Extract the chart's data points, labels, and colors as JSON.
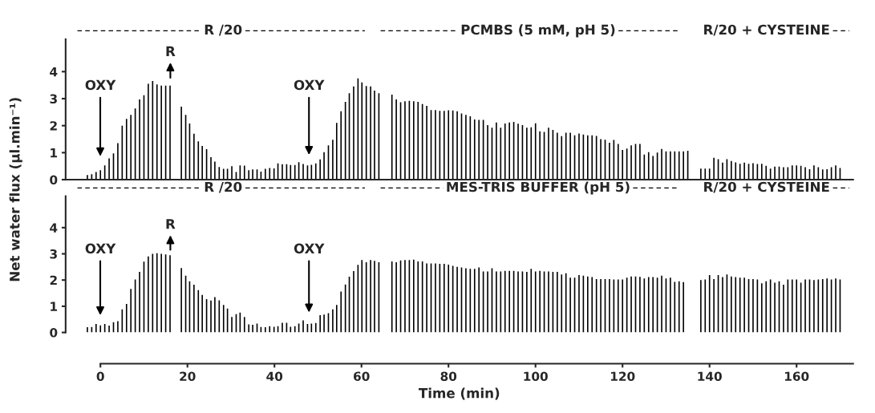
{
  "chart_data": [
    {
      "type": "bar",
      "ylabel": "Net water flux (µl.min⁻¹)",
      "xlim": [
        -8,
        173
      ],
      "ylim": [
        0,
        5.2
      ],
      "yticks": [
        0,
        1,
        2,
        3,
        4
      ],
      "tick_labels": "y",
      "annotations": [
        "OXY",
        "R",
        "OXY",
        "R /20",
        "PCMBS (5 mM, pH 5)",
        "R/20 + CYSTEINE"
      ],
      "series": [
        {
          "color": "#000000",
          "x": [
            -3,
            -2,
            -1,
            0,
            1,
            2,
            3,
            4,
            5,
            6,
            7,
            8,
            9,
            10,
            11,
            12,
            13,
            14,
            15,
            16
          ],
          "values": [
            0.17,
            0.2,
            0.28,
            0.35,
            0.53,
            0.79,
            0.97,
            1.35,
            2.0,
            2.25,
            2.4,
            2.64,
            2.97,
            3.13,
            3.55,
            3.65,
            3.53,
            3.48,
            3.48,
            3.48
          ]
        },
        {
          "color": "#000000",
          "x": [
            18.6,
            19.6,
            20.5,
            21.5,
            22.5,
            23.4,
            24.4,
            25.4,
            26.3,
            27.3,
            28.3,
            29.2,
            30.2,
            31.2,
            32.1,
            33.1,
            34.1,
            35.0,
            36.0,
            36.9,
            37.9,
            38.9,
            39.9,
            40.8,
            41.8,
            42.8,
            43.7,
            44.7,
            45.6,
            46.6,
            47.6,
            48.5,
            49.5,
            50.5,
            51.4,
            52.4,
            53.4,
            54.3,
            55.3,
            56.3,
            57.2,
            58.2,
            59.2,
            60.1,
            61.1,
            62.1,
            63.0,
            64.0
          ],
          "values": [
            2.7,
            2.4,
            2.08,
            1.7,
            1.42,
            1.25,
            1.13,
            0.83,
            0.67,
            0.47,
            0.4,
            0.4,
            0.5,
            0.28,
            0.53,
            0.52,
            0.35,
            0.38,
            0.38,
            0.3,
            0.4,
            0.43,
            0.42,
            0.6,
            0.57,
            0.57,
            0.54,
            0.54,
            0.65,
            0.58,
            0.53,
            0.55,
            0.6,
            0.75,
            1.02,
            1.27,
            1.48,
            2.1,
            2.53,
            2.88,
            3.2,
            3.45,
            3.75,
            3.6,
            3.47,
            3.45,
            3.3,
            3.2
          ]
        },
        {
          "color": "#000000",
          "x": [
            67,
            68,
            69,
            70,
            71,
            72,
            73,
            74,
            75,
            76,
            77,
            78,
            79,
            80,
            81,
            82,
            83,
            84,
            85,
            86,
            87,
            88,
            89,
            90,
            91,
            92,
            93,
            94,
            95,
            96,
            97,
            98,
            99,
            100,
            101,
            102,
            103,
            104,
            105,
            106,
            107,
            108,
            109,
            110,
            111,
            112,
            113,
            114,
            115,
            116,
            117,
            118,
            119,
            120,
            121,
            122,
            123,
            124,
            125,
            126,
            127,
            128,
            129,
            130,
            131,
            132,
            133,
            134,
            135
          ],
          "values": [
            3.15,
            2.97,
            2.87,
            2.9,
            2.92,
            2.9,
            2.88,
            2.8,
            2.73,
            2.58,
            2.58,
            2.55,
            2.55,
            2.57,
            2.56,
            2.53,
            2.45,
            2.4,
            2.35,
            2.23,
            2.21,
            2.21,
            2.02,
            1.92,
            2.12,
            1.92,
            2.08,
            2.12,
            2.14,
            2.07,
            2.02,
            1.92,
            1.94,
            2.09,
            1.79,
            1.77,
            1.92,
            1.84,
            1.74,
            1.61,
            1.74,
            1.74,
            1.64,
            1.71,
            1.67,
            1.64,
            1.64,
            1.62,
            1.5,
            1.48,
            1.37,
            1.47,
            1.32,
            1.1,
            1.15,
            1.27,
            1.32,
            1.32,
            0.93,
            1.02,
            0.88,
            1.0,
            1.14,
            1.05,
            1.05,
            1.05,
            1.05,
            1.05,
            1.07
          ]
        },
        {
          "color": "#000000",
          "x": [
            138,
            139,
            140,
            141,
            142,
            143,
            144,
            145,
            146,
            147,
            148,
            149,
            150,
            151,
            152,
            153,
            154,
            155,
            156,
            157,
            158,
            159,
            160,
            161,
            162,
            163,
            164,
            165,
            166,
            167,
            168,
            169,
            170
          ],
          "values": [
            0.41,
            0.41,
            0.41,
            0.81,
            0.76,
            0.63,
            0.76,
            0.69,
            0.64,
            0.59,
            0.63,
            0.59,
            0.61,
            0.58,
            0.59,
            0.51,
            0.41,
            0.48,
            0.48,
            0.46,
            0.46,
            0.53,
            0.53,
            0.51,
            0.46,
            0.39,
            0.53,
            0.46,
            0.38,
            0.39,
            0.46,
            0.53,
            0.43
          ]
        }
      ]
    },
    {
      "type": "bar",
      "xlabel": "Time (min)",
      "xlim": [
        -8,
        173
      ],
      "xticks": [
        0,
        20,
        40,
        60,
        80,
        100,
        120,
        140,
        160
      ],
      "ylim": [
        0,
        5.2
      ],
      "yticks": [
        0,
        1,
        2,
        3,
        4
      ],
      "annotations": [
        "OXY",
        "R",
        "OXY",
        "R /20",
        "MES-TRIS BUFFER (pH 5)",
        "R/20 + CYSTEINE"
      ],
      "series": [
        {
          "color": "#000000",
          "x": [
            -3,
            -2,
            -1,
            0,
            1,
            2,
            3,
            4,
            5,
            6,
            7,
            8,
            9,
            10,
            11,
            12,
            13,
            14,
            15,
            16
          ],
          "values": [
            0.2,
            0.21,
            0.32,
            0.27,
            0.32,
            0.26,
            0.39,
            0.43,
            0.88,
            1.09,
            1.66,
            2.02,
            2.31,
            2.7,
            2.9,
            3.0,
            3.02,
            3.0,
            2.98,
            2.95
          ]
        },
        {
          "color": "#000000",
          "x": [
            18.6,
            19.6,
            20.5,
            21.5,
            22.5,
            23.4,
            24.4,
            25.4,
            26.3,
            27.3,
            28.3,
            29.2,
            30.2,
            31.2,
            32.1,
            33.1,
            34.1,
            35.0,
            36.0,
            36.9,
            37.9,
            38.9,
            39.9,
            40.8,
            41.8,
            42.8,
            43.7,
            44.7,
            45.6,
            46.6,
            47.6,
            48.5,
            49.5,
            50.5,
            51.4,
            52.4,
            53.4,
            54.3,
            55.3,
            56.3,
            57.2,
            58.2,
            59.2,
            60.1,
            61.1,
            62.1,
            63.0,
            64.0
          ],
          "values": [
            2.46,
            2.17,
            1.95,
            1.82,
            1.62,
            1.43,
            1.27,
            1.22,
            1.35,
            1.23,
            1.05,
            0.91,
            0.59,
            0.7,
            0.76,
            0.59,
            0.31,
            0.29,
            0.34,
            0.21,
            0.2,
            0.24,
            0.22,
            0.24,
            0.37,
            0.37,
            0.22,
            0.24,
            0.34,
            0.46,
            0.32,
            0.34,
            0.36,
            0.66,
            0.68,
            0.74,
            0.88,
            1.05,
            1.56,
            1.83,
            2.13,
            2.34,
            2.58,
            2.76,
            2.68,
            2.76,
            2.73,
            2.68
          ]
        },
        {
          "color": "#000000",
          "x": [
            67,
            68,
            69,
            70,
            71,
            72,
            73,
            74,
            75,
            76,
            77,
            78,
            79,
            80,
            81,
            82,
            83,
            84,
            85,
            86,
            87,
            88,
            89,
            90,
            91,
            92,
            93,
            94,
            95,
            96,
            97,
            98,
            99,
            100,
            101,
            102,
            103,
            104,
            105,
            106,
            107,
            108,
            109,
            110,
            111,
            112,
            113,
            114,
            115,
            116,
            117,
            118,
            119,
            120,
            121,
            122,
            123,
            124,
            125,
            126,
            127,
            128,
            129,
            130,
            131,
            132,
            133,
            134
          ],
          "values": [
            2.71,
            2.68,
            2.75,
            2.76,
            2.76,
            2.78,
            2.71,
            2.71,
            2.63,
            2.63,
            2.63,
            2.62,
            2.62,
            2.59,
            2.54,
            2.5,
            2.48,
            2.45,
            2.43,
            2.43,
            2.48,
            2.33,
            2.33,
            2.45,
            2.33,
            2.33,
            2.35,
            2.35,
            2.35,
            2.33,
            2.33,
            2.31,
            2.43,
            2.33,
            2.35,
            2.33,
            2.33,
            2.31,
            2.31,
            2.21,
            2.26,
            2.09,
            2.09,
            2.19,
            2.17,
            2.14,
            2.11,
            2.04,
            2.04,
            2.04,
            2.04,
            2.02,
            2.02,
            2.02,
            2.09,
            2.14,
            2.14,
            2.12,
            2.06,
            2.11,
            2.11,
            2.09,
            2.17,
            2.06,
            2.09,
            1.93,
            1.95,
            1.92
          ]
        },
        {
          "color": "#000000",
          "x": [
            138,
            139,
            140,
            141,
            142,
            143,
            144,
            145,
            146,
            147,
            148,
            149,
            150,
            151,
            152,
            153,
            154,
            155,
            156,
            157,
            158,
            159,
            160,
            161,
            162,
            163,
            164,
            165,
            166,
            167,
            168,
            169,
            170
          ],
          "values": [
            2.0,
            2.02,
            2.19,
            2.04,
            2.19,
            2.11,
            2.21,
            2.14,
            2.11,
            2.09,
            2.09,
            2.04,
            2.04,
            2.02,
            1.88,
            1.95,
            2.02,
            1.9,
            1.95,
            1.82,
            2.02,
            2.02,
            2.02,
            1.9,
            2.02,
            2.02,
            2.0,
            2.02,
            2.04,
            2.06,
            2.02,
            2.06,
            2.02
          ]
        }
      ]
    }
  ]
}
